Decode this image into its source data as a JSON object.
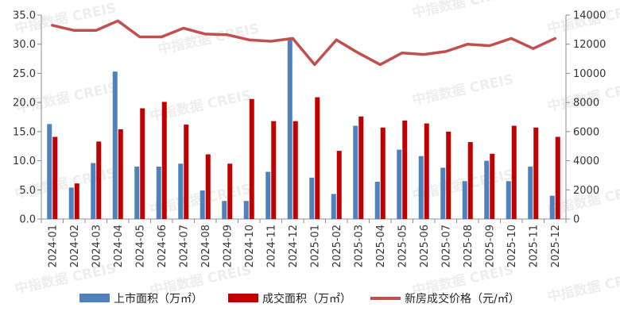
{
  "chart_data": {
    "type": "bar",
    "categories": [
      "2024-01",
      "2024-02",
      "2024-03",
      "2024-04",
      "2024-05",
      "2024-06",
      "2024-07",
      "2024-08",
      "2024-09",
      "2024-10",
      "2024-11",
      "2024-12",
      "2025-01",
      "2025-02",
      "2025-03",
      "2025-04",
      "2025-05",
      "2025-06",
      "2025-07",
      "2025-08",
      "2025-09",
      "2025-10",
      "2025-11",
      "2025-12"
    ],
    "series": [
      {
        "name": "上市面积（万㎡）",
        "kind": "bar",
        "axis": "left",
        "color": "#4f81bd",
        "values": [
          16.3,
          5.4,
          9.6,
          25.3,
          9.0,
          9.0,
          9.5,
          4.9,
          3.1,
          3.1,
          8.1,
          30.8,
          7.1,
          4.3,
          16.0,
          6.4,
          11.9,
          10.8,
          8.8,
          6.5,
          10.0,
          6.5,
          9.0,
          4.0
        ]
      },
      {
        "name": "成交面积（万㎡）",
        "kind": "bar",
        "axis": "left",
        "color": "#c00000",
        "values": [
          14.1,
          6.1,
          13.3,
          15.4,
          19.0,
          20.1,
          16.2,
          11.1,
          9.5,
          20.6,
          16.8,
          16.8,
          20.9,
          11.7,
          17.6,
          15.7,
          16.9,
          16.4,
          15.0,
          13.2,
          11.2,
          16.0,
          15.7,
          14.1
        ]
      },
      {
        "name": "新房成交价格（元/㎡）",
        "kind": "line",
        "axis": "right",
        "color": "#c0504d",
        "values": [
          13300,
          12950,
          12950,
          13600,
          12500,
          12500,
          13100,
          12700,
          12650,
          12300,
          12200,
          12400,
          10600,
          12300,
          11400,
          10600,
          11400,
          11300,
          11500,
          12000,
          11900,
          12400,
          11700,
          12400
        ]
      }
    ],
    "ylim_left": [
      0,
      35
    ],
    "yticks_left": [
      "0.0",
      "5.0",
      "10.0",
      "15.0",
      "20.0",
      "25.0",
      "30.0",
      "35.0"
    ],
    "ylim_right": [
      0,
      14000
    ],
    "yticks_right": [
      "0",
      "2000",
      "4000",
      "6000",
      "8000",
      "10000",
      "12000",
      "14000"
    ],
    "grid": false,
    "legend_position": "bottom",
    "watermark": "中指数据 CREIS"
  }
}
